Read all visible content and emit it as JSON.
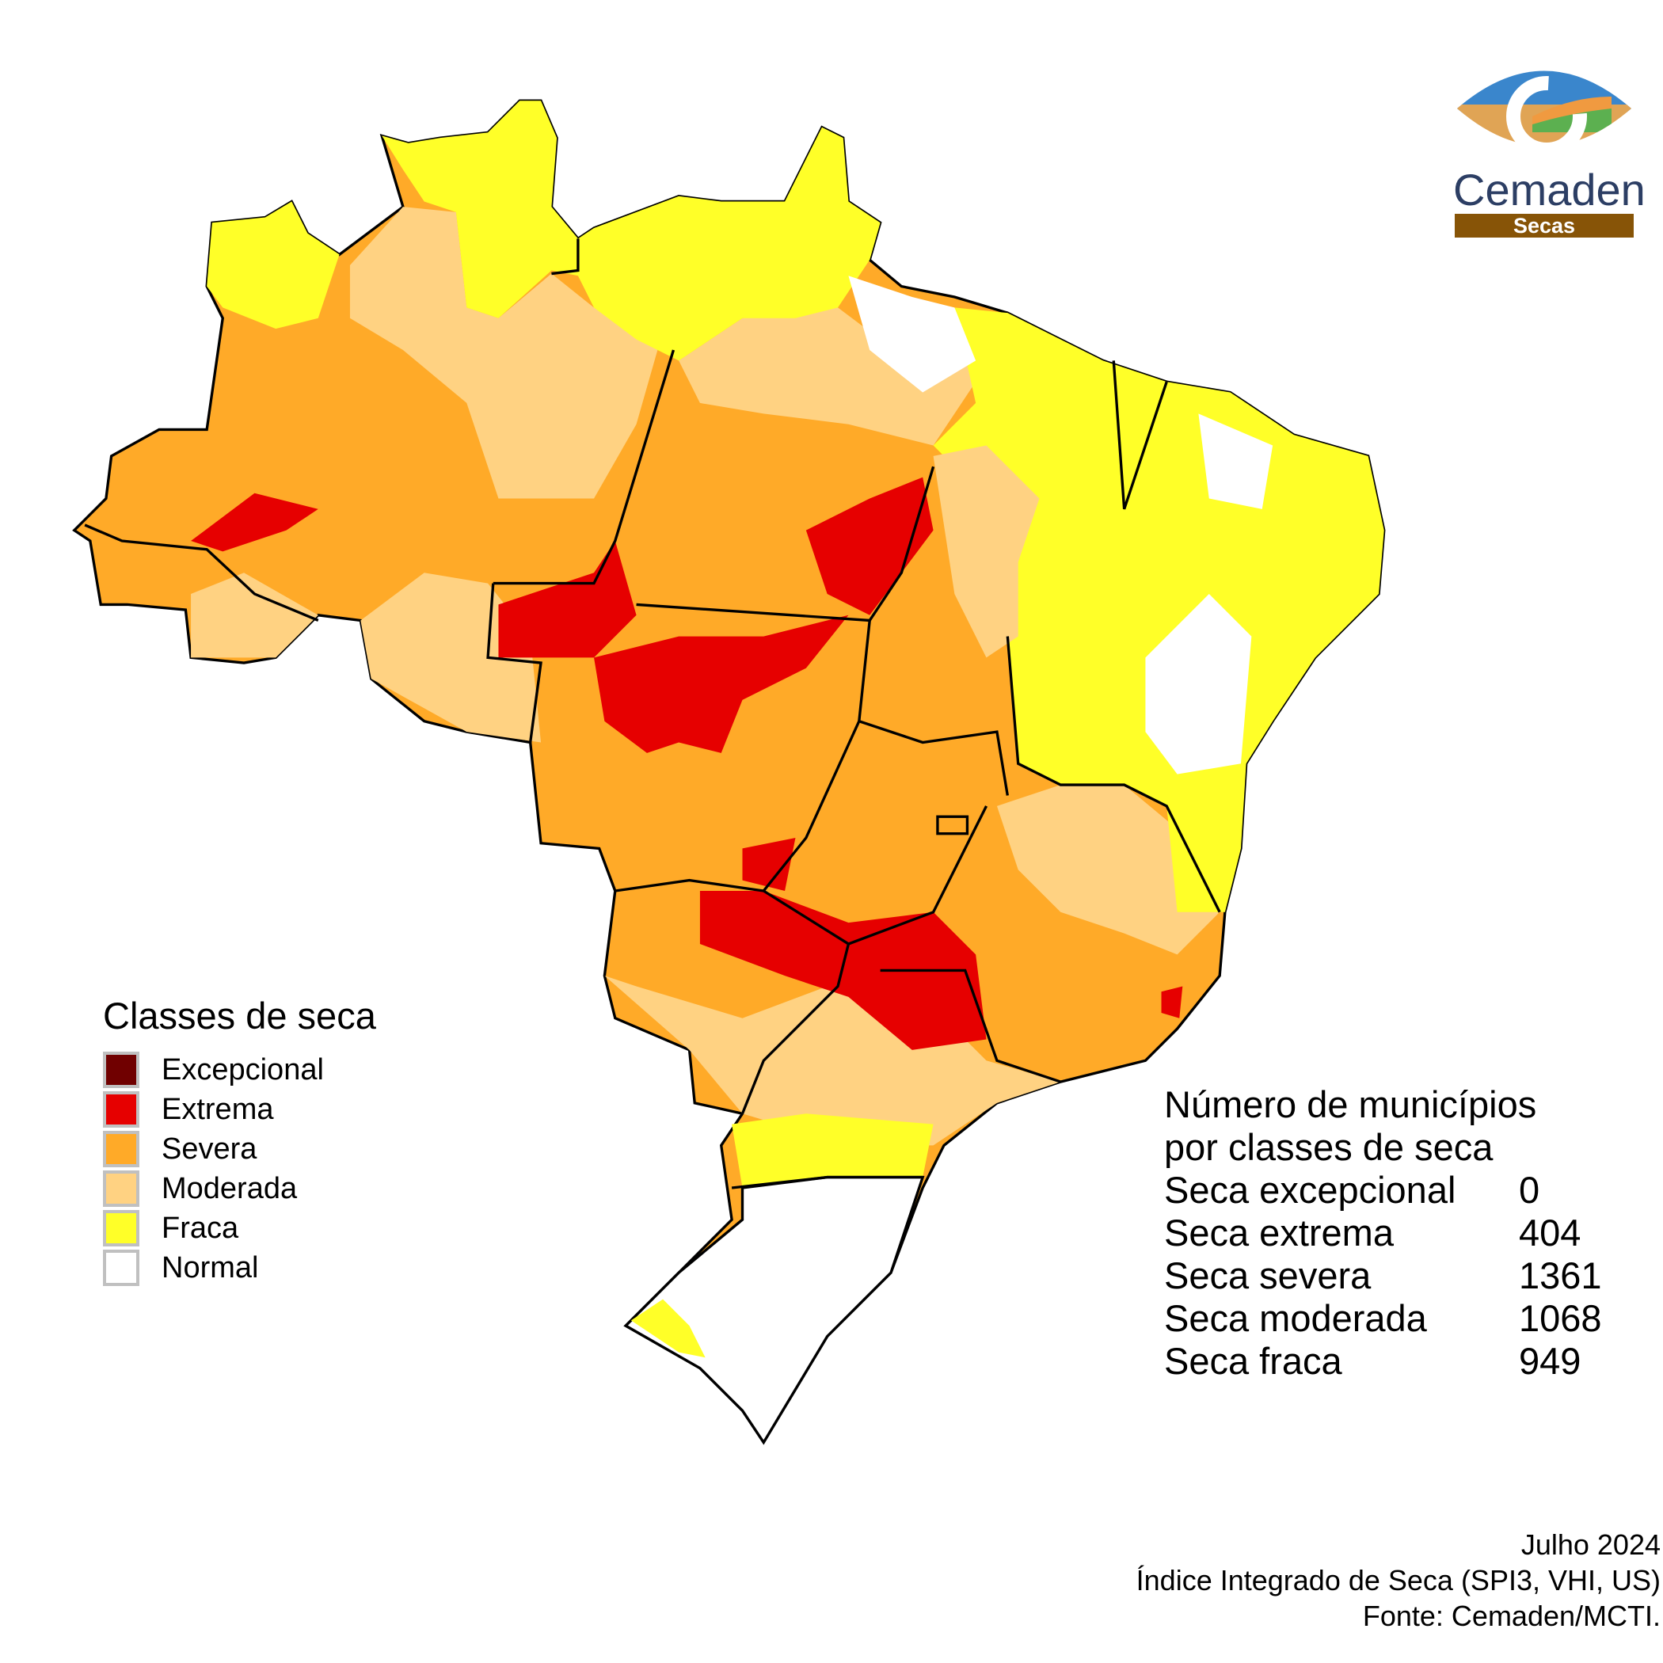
{
  "legend": {
    "title": "Classes de seca",
    "items": [
      {
        "label": "Excepcional",
        "color": "#700000"
      },
      {
        "label": "Extrema",
        "color": "#e60000"
      },
      {
        "label": "Severa",
        "color": "#ffaa28"
      },
      {
        "label": "Moderada",
        "color": "#ffd282"
      },
      {
        "label": "Fraca",
        "color": "#ffff28"
      },
      {
        "label": "Normal",
        "color": "#ffffff"
      }
    ]
  },
  "stats": {
    "title_line1": "Número de municípios",
    "title_line2": "por classes de seca",
    "rows": [
      {
        "name": "Seca excepcional",
        "value": "0"
      },
      {
        "name": "Seca extrema",
        "value": "404"
      },
      {
        "name": "Seca severa",
        "value": "1361"
      },
      {
        "name": "Seca moderada",
        "value": "1068"
      },
      {
        "name": "Seca fraca",
        "value": "949"
      }
    ]
  },
  "footer": {
    "date": "Julho 2024",
    "index": "Índice Integrado de Seca (SPI3, VHI, US)",
    "source": "Fonte: Cemaden/MCTI."
  },
  "logo": {
    "name": "Cemaden",
    "subtitle": "Secas"
  }
}
